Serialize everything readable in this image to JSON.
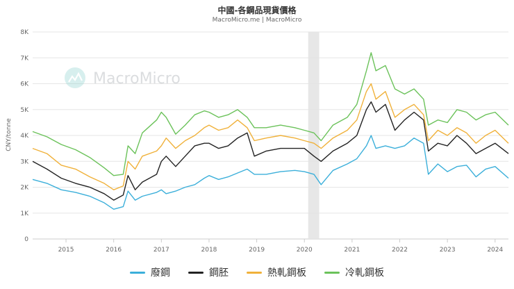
{
  "chart_data": {
    "type": "line",
    "title": "中國-各鋼品現貨價格",
    "subtitle": "MacroMicro.me | MacroMicro",
    "watermark": "MacroMicro",
    "ylabel": "CNY/tonne",
    "xlabel": "",
    "ylim": [
      0,
      8000
    ],
    "xlim": [
      2014.3,
      2024.28
    ],
    "yticks": [
      "0",
      "1K",
      "2K",
      "3K",
      "4K",
      "5K",
      "6K",
      "7K",
      "8K"
    ],
    "ytick_values": [
      0,
      1000,
      2000,
      3000,
      4000,
      5000,
      6000,
      7000,
      8000
    ],
    "xticks": [
      "2015",
      "2016",
      "2017",
      "2018",
      "2019",
      "2020",
      "2021",
      "2022",
      "2023",
      "2024"
    ],
    "xtick_values": [
      2015.0,
      2016.0,
      2017.0,
      2018.0,
      2019.0,
      2020.0,
      2021.0,
      2022.0,
      2023.0,
      2024.0
    ],
    "shaded_range": [
      2020.08,
      2020.31
    ],
    "grid": true,
    "legend_position": "bottom",
    "x": [
      2014.3,
      2014.6,
      2014.9,
      2015.2,
      2015.5,
      2015.8,
      2016.0,
      2016.2,
      2016.3,
      2016.45,
      2016.6,
      2016.9,
      2017.0,
      2017.1,
      2017.3,
      2017.5,
      2017.7,
      2017.9,
      2018.0,
      2018.2,
      2018.4,
      2018.6,
      2018.8,
      2018.95,
      2019.2,
      2019.5,
      2019.8,
      2020.0,
      2020.2,
      2020.35,
      2020.6,
      2020.9,
      2021.1,
      2021.3,
      2021.4,
      2021.5,
      2021.7,
      2021.9,
      2022.1,
      2022.3,
      2022.5,
      2022.6,
      2022.8,
      2023.0,
      2023.2,
      2023.4,
      2023.6,
      2023.8,
      2024.0,
      2024.28
    ],
    "series": [
      {
        "name": "廢鋼",
        "color": "#3bafda",
        "values": [
          2300,
          2150,
          1900,
          1800,
          1650,
          1400,
          1150,
          1250,
          1850,
          1500,
          1650,
          1800,
          1900,
          1750,
          1850,
          2000,
          2100,
          2350,
          2450,
          2300,
          2400,
          2550,
          2700,
          2500,
          2500,
          2600,
          2650,
          2600,
          2500,
          2100,
          2650,
          2900,
          3100,
          3600,
          4000,
          3500,
          3600,
          3500,
          3600,
          3900,
          3700,
          2500,
          2900,
          2600,
          2800,
          2850,
          2400,
          2700,
          2800,
          2350
        ]
      },
      {
        "name": "鋼胚",
        "color": "#222222",
        "values": [
          3000,
          2700,
          2350,
          2150,
          2000,
          1750,
          1500,
          1700,
          2450,
          1900,
          2200,
          2500,
          3000,
          3200,
          2800,
          3200,
          3600,
          3700,
          3700,
          3500,
          3600,
          3900,
          4100,
          3200,
          3400,
          3500,
          3500,
          3500,
          3200,
          3000,
          3400,
          3700,
          4000,
          5000,
          5300,
          4900,
          5200,
          4200,
          4600,
          4900,
          4600,
          3400,
          3700,
          3600,
          4000,
          3700,
          3300,
          3500,
          3700,
          3300
        ]
      },
      {
        "name": "熱軋鋼板",
        "color": "#f0b13a",
        "values": [
          3500,
          3300,
          2850,
          2700,
          2400,
          2150,
          1900,
          2050,
          3000,
          2700,
          3200,
          3400,
          3600,
          3900,
          3500,
          3800,
          4000,
          4300,
          4400,
          4200,
          4300,
          4600,
          4300,
          3800,
          3900,
          4000,
          3900,
          3800,
          3700,
          3500,
          3900,
          4200,
          4600,
          5700,
          6000,
          5400,
          5700,
          4700,
          5000,
          5200,
          4800,
          3800,
          4200,
          4000,
          4300,
          4100,
          3700,
          4000,
          4200,
          3700
        ]
      },
      {
        "name": "冷軋鋼板",
        "color": "#6bc25a",
        "values": [
          4150,
          3950,
          3650,
          3450,
          3150,
          2750,
          2450,
          2500,
          3600,
          3300,
          4100,
          4600,
          4900,
          4700,
          4050,
          4400,
          4800,
          4950,
          4900,
          4700,
          4800,
          5000,
          4700,
          4300,
          4300,
          4400,
          4300,
          4200,
          4100,
          3800,
          4400,
          4700,
          5200,
          6500,
          7200,
          6500,
          6700,
          5800,
          5600,
          5800,
          5400,
          4400,
          4600,
          4500,
          5000,
          4900,
          4600,
          4800,
          4900,
          4400
        ]
      }
    ]
  }
}
